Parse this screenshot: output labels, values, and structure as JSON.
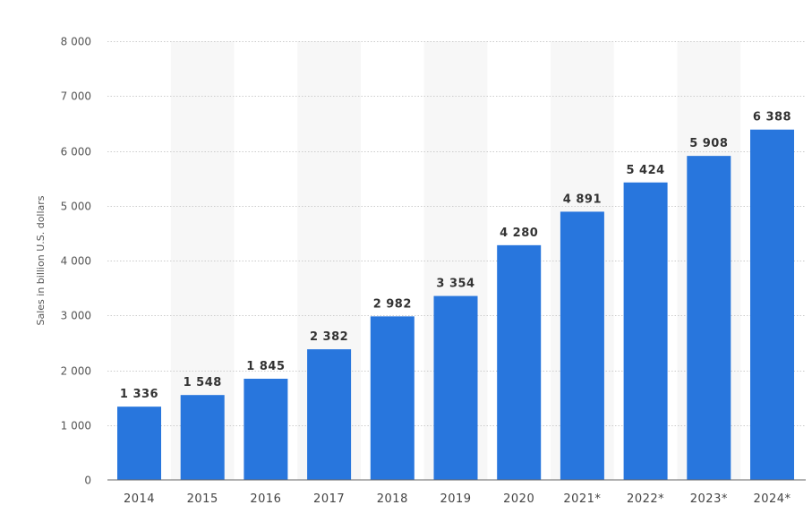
{
  "chart_data": {
    "type": "bar",
    "title": "",
    "xlabel": "",
    "ylabel": "Sales in billion U.S. dollars",
    "categories": [
      "2014",
      "2015",
      "2016",
      "2017",
      "2018",
      "2019",
      "2020",
      "2021*",
      "2022*",
      "2023*",
      "2024*"
    ],
    "values": [
      1336,
      1548,
      1845,
      2382,
      2982,
      3354,
      4280,
      4891,
      5424,
      5908,
      6388
    ],
    "value_labels": [
      "1 336",
      "1 548",
      "1 845",
      "2 382",
      "2 982",
      "3 354",
      "4 280",
      "4 891",
      "5 424",
      "5 908",
      "6 388"
    ],
    "ylim": [
      0,
      8000
    ],
    "yticks": [
      0,
      1000,
      2000,
      3000,
      4000,
      5000,
      6000,
      7000,
      8000
    ],
    "ytick_labels": [
      "0",
      "1 000",
      "2 000",
      "3 000",
      "4 000",
      "5 000",
      "6 000",
      "7 000",
      "8 000"
    ],
    "grid": true,
    "bar_color": "#2876dd",
    "band_color": "#f7f7f7",
    "grid_color": "#cccccc"
  }
}
